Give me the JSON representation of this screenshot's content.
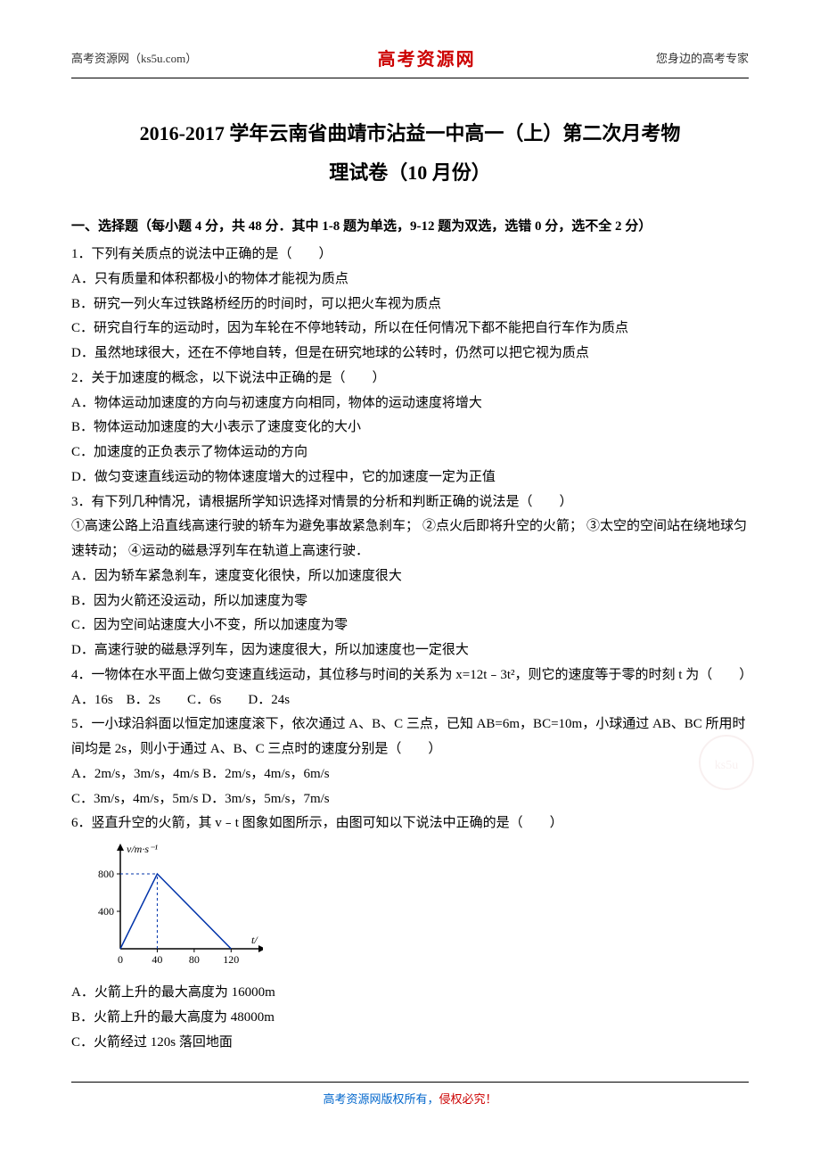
{
  "header": {
    "left": "高考资源网（ks5u.com）",
    "center": "高考资源网",
    "right": "您身边的高考专家"
  },
  "title_line1": "2016-2017 学年云南省曲靖市沾益一中高一（上）第二次月考物",
  "title_line2": "理试卷（10 月份）",
  "section1_header": "一、选择题（每小题 4 分，共 48 分．其中 1-8 题为单选，9-12 题为双选，选错 0 分，选不全 2 分）",
  "q1": {
    "stem": "1．下列有关质点的说法中正确的是（　　）",
    "a": "A．只有质量和体积都极小的物体才能视为质点",
    "b": "B．研究一列火车过铁路桥经历的时间时，可以把火车视为质点",
    "c": "C．研究自行车的运动时，因为车轮在不停地转动，所以在任何情况下都不能把自行车作为质点",
    "d": "D．虽然地球很大，还在不停地自转，但是在研究地球的公转时，仍然可以把它视为质点"
  },
  "q2": {
    "stem": "2．关于加速度的概念，以下说法中正确的是（　　）",
    "a": "A．物体运动加速度的方向与初速度方向相同，物体的运动速度将增大",
    "b": "B．物体运动加速度的大小表示了速度变化的大小",
    "c": "C．加速度的正负表示了物体运动的方向",
    "d": "D．做匀变速直线运动的物体速度增大的过程中，它的加速度一定为正值"
  },
  "q3": {
    "stem": "3．有下列几种情况，请根据所学知识选择对情景的分析和判断正确的说法是（　　）",
    "line1": "①高速公路上沿直线高速行驶的轿车为避免事故紧急刹车；",
    "line2": "②点火后即将升空的火箭；",
    "line3": "③太空的空间站在绕地球匀速转动；",
    "line4": "④运动的磁悬浮列车在轨道上高速行驶．",
    "a": "A．因为轿车紧急刹车，速度变化很快，所以加速度很大",
    "b": "B．因为火箭还没运动，所以加速度为零",
    "c": "C．因为空间站速度大小不变，所以加速度为零",
    "d": "D．高速行驶的磁悬浮列车，因为速度很大，所以加速度也一定很大"
  },
  "q4": {
    "stem": "4．一物体在水平面上做匀变速直线运动，其位移与时间的关系为 x=12t﹣3t²，则它的速度等于零的时刻 t 为（　　）",
    "options": "A．16s　B．2s　　C．6s　　D．24s"
  },
  "q5": {
    "stem": "5．一小球沿斜面以恒定加速度滚下，依次通过 A、B、C 三点，已知 AB=6m，BC=10m，小球通过 AB、BC 所用时间均是 2s，则小于通过 A、B、C 三点时的速度分别是（　　）",
    "a": "A．2m/s，3m/s，4m/s B．2m/s，4m/s，6m/s",
    "c": "C．3m/s，4m/s，5m/s D．3m/s，5m/s，7m/s"
  },
  "q6": {
    "stem": "6．竖直升空的火箭，其 v﹣t 图象如图所示，由图可知以下说法中正确的是（　　）",
    "a": "A．火箭上升的最大高度为 16000m",
    "b": "B．火箭上升的最大高度为 48000m",
    "c": "C．火箭经过 120s 落回地面"
  },
  "chart": {
    "type": "line",
    "ylabel": "v/m·s⁻¹",
    "xlabel": "t/",
    "x_ticks": [
      0,
      40,
      80,
      120
    ],
    "y_ticks": [
      400,
      800
    ],
    "points": [
      [
        0,
        0
      ],
      [
        40,
        800
      ],
      [
        120,
        0
      ]
    ],
    "axis_color": "#000000",
    "line_color": "#0033aa",
    "tick_color": "#0033aa",
    "dash_color": "#0033aa",
    "background_color": "#ffffff",
    "axis_fontsize": 12,
    "line_width": 1.5
  },
  "footer": {
    "blue": "高考资源网版权所有，",
    "red": "侵权必究！"
  }
}
